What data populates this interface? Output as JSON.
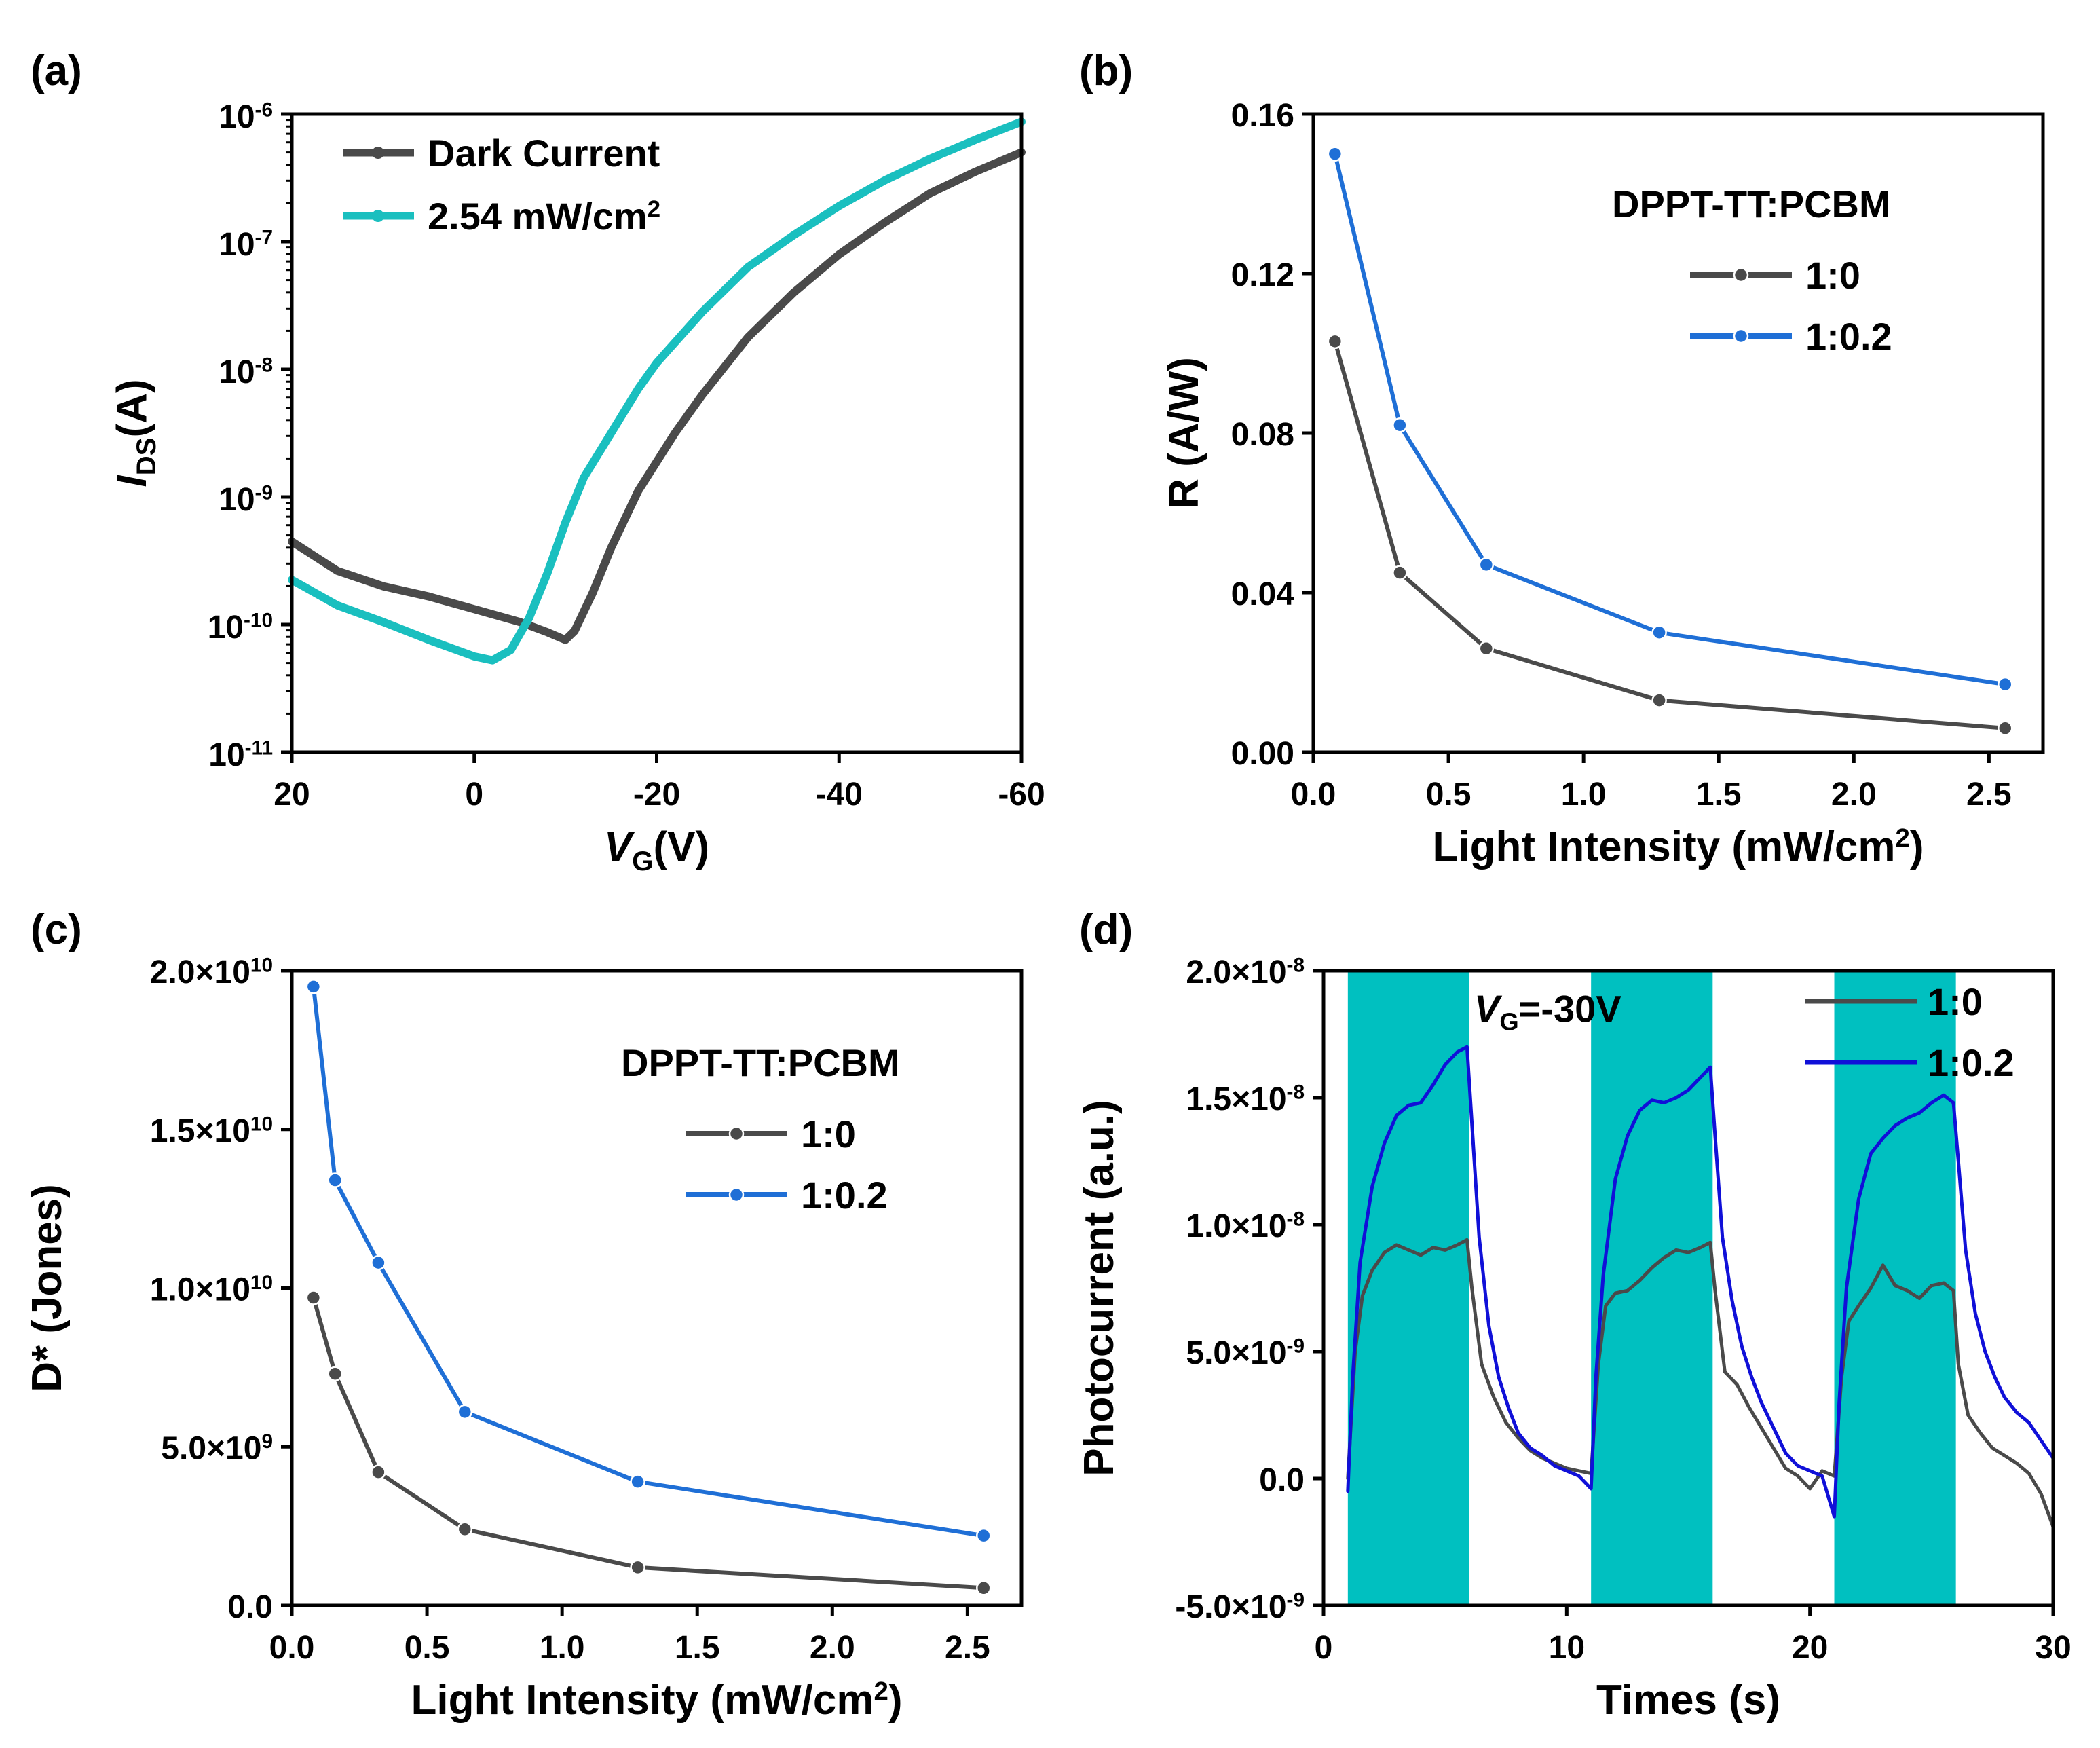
{
  "chart_data": [
    {
      "panel": "(a)",
      "type": "line",
      "title": "",
      "xlabel_main": "V",
      "xlabel_sub": "G",
      "xlabel_unit": "(V)",
      "ylabel_main": "I",
      "ylabel_sub": "DS",
      "ylabel_unit": "(A)",
      "xlim": [
        20,
        -60
      ],
      "yscale": "log",
      "ylim_exp": [
        -11,
        -6
      ],
      "x_ticks": [
        20,
        0,
        -20,
        -40,
        -60
      ],
      "x_tick_labels": [
        "20",
        "0",
        "-20",
        "-40",
        "-60"
      ],
      "y_ticks_exp": [
        -11,
        -10,
        -9,
        -8,
        -7,
        -6
      ],
      "y_tick_base": "10",
      "y_tick_exps": [
        "-11",
        "-10",
        "-9",
        "-8",
        "-7",
        "-6"
      ],
      "legend_position": "top-left",
      "legend_unit_super": "2",
      "series": [
        {
          "name": "Dark Current",
          "legend_label": "Dark Current",
          "color": "#4a4a4a",
          "x": [
            20,
            15,
            10,
            5,
            0,
            -5,
            -8,
            -10,
            -11,
            -13,
            -15,
            -18,
            -22,
            -25,
            -30,
            -35,
            -40,
            -45,
            -50,
            -55,
            -60
          ],
          "log_y": [
            -9.35,
            -9.58,
            -9.7,
            -9.78,
            -9.88,
            -9.98,
            -10.06,
            -10.12,
            -10.05,
            -9.75,
            -9.4,
            -8.95,
            -8.5,
            -8.2,
            -7.75,
            -7.4,
            -7.1,
            -6.85,
            -6.62,
            -6.45,
            -6.3
          ]
        },
        {
          "name": "2.54 mW/cm2",
          "legend_label": "2.54 mW/cm",
          "color": "#1abfbf",
          "x": [
            20,
            15,
            10,
            5,
            0,
            -2,
            -4,
            -6,
            -8,
            -10,
            -12,
            -15,
            -18,
            -20,
            -25,
            -30,
            -35,
            -40,
            -45,
            -50,
            -55,
            -60
          ],
          "log_y": [
            -9.65,
            -9.85,
            -9.98,
            -10.12,
            -10.25,
            -10.28,
            -10.2,
            -9.95,
            -9.6,
            -9.2,
            -8.85,
            -8.5,
            -8.15,
            -7.95,
            -7.55,
            -7.2,
            -6.95,
            -6.72,
            -6.52,
            -6.35,
            -6.2,
            -6.06
          ]
        }
      ]
    },
    {
      "panel": "(b)",
      "type": "line",
      "title": "",
      "xlabel": "Light Intensity (mW/cm",
      "xlabel_super": "2",
      "xlabel_end": ")",
      "ylabel": "R (A/W)",
      "xlim": [
        0,
        2.7
      ],
      "ylim": [
        0,
        0.16
      ],
      "x_ticks": [
        0,
        0.5,
        1,
        1.5,
        2,
        2.5
      ],
      "x_tick_labels": [
        "0.0",
        "0.5",
        "1.0",
        "1.5",
        "2.0",
        "2.5"
      ],
      "y_ticks": [
        0,
        0.04,
        0.08,
        0.12,
        0.16
      ],
      "y_tick_labels": [
        "0.00",
        "0.04",
        "0.08",
        "0.12",
        "0.16"
      ],
      "legend_title": "DPPT-TT:PCBM",
      "legend_position": "top-right",
      "series": [
        {
          "name": "1:0",
          "color": "#4a4a4a",
          "x": [
            0.08,
            0.32,
            0.64,
            1.28,
            2.56
          ],
          "values": [
            0.103,
            0.045,
            0.026,
            0.013,
            0.006
          ]
        },
        {
          "name": "1:0.2",
          "color": "#1f6fd6",
          "x": [
            0.08,
            0.32,
            0.64,
            1.28,
            2.56
          ],
          "values": [
            0.15,
            0.082,
            0.047,
            0.03,
            0.017
          ]
        }
      ]
    },
    {
      "panel": "(c)",
      "type": "line",
      "title": "",
      "xlabel": "Light Intensity (mW/cm",
      "xlabel_super": "2",
      "xlabel_end": ")",
      "ylabel": "D* (Jones)",
      "xlim": [
        0,
        2.7
      ],
      "ylim": [
        0,
        20000000000
      ],
      "x_ticks": [
        0,
        0.5,
        1,
        1.5,
        2,
        2.5
      ],
      "x_tick_labels": [
        "0.0",
        "0.5",
        "1.0",
        "1.5",
        "2.0",
        "2.5"
      ],
      "y_ticks": [
        0,
        5000000000,
        10000000000,
        15000000000,
        20000000000
      ],
      "y_tick_mant": [
        "0.0",
        "5.0×10",
        "1.0×10",
        "1.5×10",
        "2.0×10"
      ],
      "y_tick_exp": [
        "",
        "9",
        "10",
        "10",
        "10"
      ],
      "legend_title": "DPPT-TT:PCBM",
      "legend_position": "center-right",
      "series": [
        {
          "name": "1:0",
          "color": "#4a4a4a",
          "x": [
            0.08,
            0.16,
            0.32,
            0.64,
            1.28,
            2.56
          ],
          "values": [
            9700000000,
            7300000000,
            4200000000,
            2400000000,
            1200000000,
            550000000
          ]
        },
        {
          "name": "1:0.2",
          "color": "#1f6fd6",
          "x": [
            0.08,
            0.16,
            0.32,
            0.64,
            1.28,
            2.56
          ],
          "values": [
            19500000000,
            13400000000,
            10800000000,
            6100000000,
            3900000000,
            2200000000
          ]
        }
      ]
    },
    {
      "panel": "(d)",
      "type": "line",
      "title": "",
      "xlabel": "Times (s)",
      "ylabel": "Photocurrent (a.u.)",
      "xlim": [
        0,
        30
      ],
      "ylim": [
        -5e-09,
        2e-08
      ],
      "x_ticks": [
        0,
        10,
        20,
        30
      ],
      "x_tick_labels": [
        "0",
        "10",
        "20",
        "30"
      ],
      "y_ticks": [
        -5e-09,
        0,
        5e-09,
        1e-08,
        1.5e-08,
        2e-08
      ],
      "y_tick_mant": [
        "-5.0×10",
        "0.0",
        "5.0×10",
        "1.0×10",
        "1.5×10",
        "2.0×10"
      ],
      "y_tick_exp": [
        "-9",
        "",
        "-9",
        "-8",
        "-8",
        "-8"
      ],
      "annotation_main": "V",
      "annotation_sub": "G",
      "annotation_value": "=-30V",
      "illumination_color": "#00c0c0",
      "illumination_windows": [
        [
          1,
          6
        ],
        [
          11,
          16
        ],
        [
          21,
          26
        ]
      ],
      "legend_position": "top-right",
      "series": [
        {
          "name": "1:0",
          "color": "#4a4a4a",
          "x": [
            1,
            1.3,
            1.6,
            2,
            2.5,
            3,
            3.5,
            4,
            4.5,
            5,
            5.5,
            5.9,
            6.1,
            6.5,
            7,
            7.5,
            8,
            8.5,
            9,
            9.5,
            10,
            10.5,
            11,
            11.3,
            11.6,
            12,
            12.5,
            13,
            13.5,
            14,
            14.5,
            15,
            15.5,
            15.9,
            16.1,
            16.5,
            17,
            17.5,
            18,
            18.5,
            19,
            19.5,
            20,
            20.5,
            21,
            21.3,
            21.6,
            22,
            22.5,
            23,
            23.5,
            24,
            24.5,
            25,
            25.5,
            25.9,
            26.1,
            26.5,
            27,
            27.5,
            28,
            28.5,
            29,
            29.5,
            30
          ],
          "values": [
            0,
            5e-09,
            7.2e-09,
            8.2e-09,
            8.9e-09,
            9.2e-09,
            9e-09,
            8.8e-09,
            9.1e-09,
            9e-09,
            9.2e-09,
            9.4e-09,
            7.5e-09,
            4.5e-09,
            3.2e-09,
            2.2e-09,
            1.6e-09,
            1.1e-09,
            8e-10,
            6e-10,
            4e-10,
            3e-10,
            2e-10,
            4.5e-09,
            6.8e-09,
            7.3e-09,
            7.4e-09,
            7.8e-09,
            8.3e-09,
            8.7e-09,
            9e-09,
            8.9e-09,
            9.1e-09,
            9.3e-09,
            7.4e-09,
            4.2e-09,
            3.7e-09,
            2.8e-09,
            2e-09,
            1.2e-09,
            4e-10,
            1e-10,
            -4e-10,
            3e-10,
            1e-10,
            4e-09,
            6.2e-09,
            6.8e-09,
            7.5e-09,
            8.4e-09,
            7.6e-09,
            7.4e-09,
            7.1e-09,
            7.6e-09,
            7.7e-09,
            7.4e-09,
            4.5e-09,
            2.5e-09,
            1.8e-09,
            1.2e-09,
            9e-10,
            6e-10,
            2e-10,
            -6e-10,
            -1.9e-09
          ]
        },
        {
          "name": "1:0.2",
          "color": "#1010d8",
          "x": [
            1,
            1.2,
            1.5,
            2,
            2.5,
            3,
            3.5,
            4,
            4.5,
            5,
            5.5,
            5.9,
            6.1,
            6.4,
            6.8,
            7.2,
            7.6,
            8,
            8.5,
            9,
            9.5,
            10,
            10.5,
            11,
            11.2,
            11.5,
            12,
            12.5,
            13,
            13.5,
            14,
            14.5,
            15,
            15.5,
            15.9,
            16.1,
            16.4,
            16.8,
            17.2,
            17.6,
            18,
            18.5,
            19,
            19.5,
            20,
            20.5,
            21,
            21.2,
            21.5,
            22,
            22.5,
            23,
            23.5,
            24,
            24.5,
            25,
            25.5,
            25.9,
            26.1,
            26.4,
            26.8,
            27.2,
            27.6,
            28,
            28.5,
            29,
            29.5,
            30
          ],
          "values": [
            -5e-10,
            4e-09,
            8.5e-09,
            1.15e-08,
            1.32e-08,
            1.43e-08,
            1.47e-08,
            1.48e-08,
            1.55e-08,
            1.63e-08,
            1.68e-08,
            1.7e-08,
            1.4e-08,
            9.5e-09,
            6e-09,
            4e-09,
            2.8e-09,
            1.8e-09,
            1.2e-09,
            9e-10,
            5e-10,
            3e-10,
            1e-10,
            -4e-10,
            4e-09,
            8e-09,
            1.18e-08,
            1.35e-08,
            1.45e-08,
            1.49e-08,
            1.48e-08,
            1.5e-08,
            1.53e-08,
            1.58e-08,
            1.62e-08,
            1.35e-08,
            9.5e-09,
            7e-09,
            5.2e-09,
            4e-09,
            3e-09,
            2e-09,
            1e-09,
            5e-10,
            3e-10,
            1e-10,
            -1.5e-09,
            3e-09,
            7.5e-09,
            1.1e-08,
            1.28e-08,
            1.34e-08,
            1.39e-08,
            1.42e-08,
            1.44e-08,
            1.48e-08,
            1.51e-08,
            1.48e-08,
            1.25e-08,
            9e-09,
            6.5e-09,
            5e-09,
            4e-09,
            3.2e-09,
            2.6e-09,
            2.2e-09,
            1.5e-09,
            8e-10
          ]
        }
      ]
    }
  ]
}
